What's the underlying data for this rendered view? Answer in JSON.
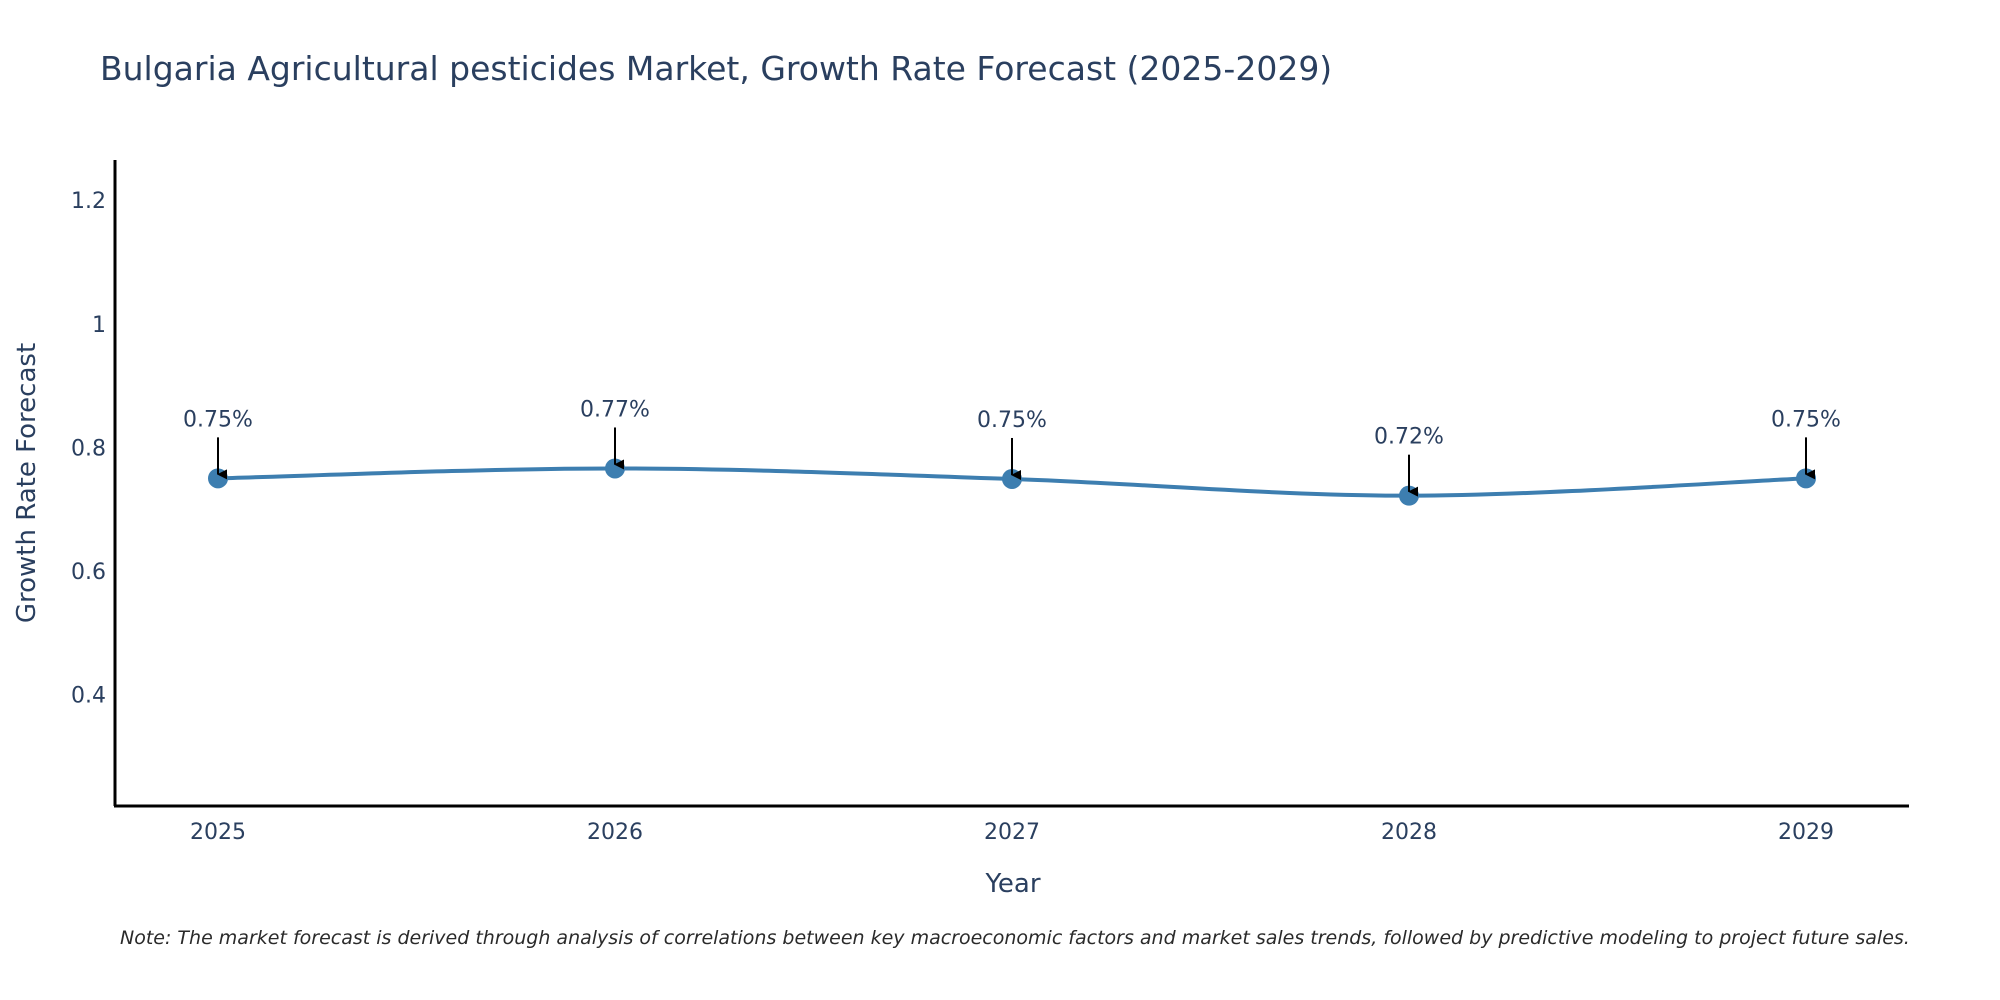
{
  "chart_data": {
    "type": "line",
    "title": "Bulgaria Agricultural pesticides Market, Growth Rate Forecast (2025-2029)",
    "xlabel": "Year",
    "ylabel": "Growth Rate Forecast",
    "categories": [
      "2025",
      "2026",
      "2027",
      "2028",
      "2029"
    ],
    "series": [
      {
        "name": "Growth Rate Forecast",
        "values": [
          0.75,
          0.766,
          0.749,
          0.722,
          0.75
        ],
        "labels": [
          "0.75%",
          "0.77%",
          "0.75%",
          "0.72%",
          "0.75%"
        ],
        "color": "#3d7eb0"
      }
    ],
    "ylim": [
      0.22,
      1.265
    ],
    "yticks": [
      0.4,
      0.6,
      0.8,
      1,
      1.2
    ],
    "ytick_labels": [
      "0.4",
      "0.6",
      "0.8",
      "1",
      "1.2"
    ],
    "grid": false,
    "note": "Note: The market forecast is derived through analysis of correlations between key macroeconomic factors and market sales trends, followed by predictive modeling to project future sales."
  }
}
